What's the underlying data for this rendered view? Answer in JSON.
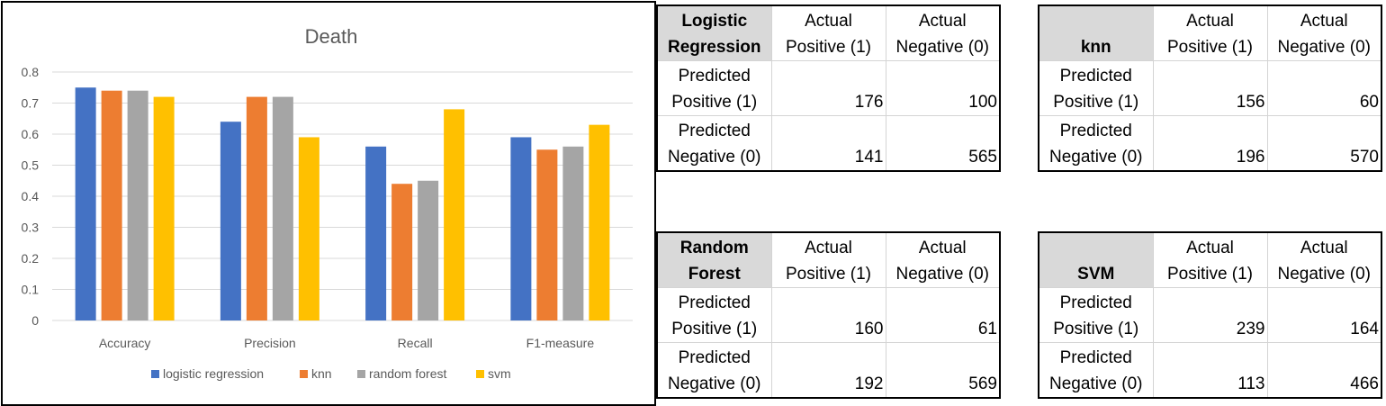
{
  "chart_data": {
    "type": "bar",
    "title": "Death",
    "categories": [
      "Accuracy",
      "Precision",
      "Recall",
      "F1-measure"
    ],
    "series": [
      {
        "name": "logistic regression",
        "color": "#4472c4",
        "values": [
          0.75,
          0.64,
          0.56,
          0.59
        ]
      },
      {
        "name": "knn",
        "color": "#ed7d31",
        "values": [
          0.74,
          0.72,
          0.44,
          0.55
        ]
      },
      {
        "name": "random forest",
        "color": "#a5a5a5",
        "values": [
          0.74,
          0.72,
          0.45,
          0.56
        ]
      },
      {
        "name": "svm",
        "color": "#ffc000",
        "values": [
          0.72,
          0.59,
          0.68,
          0.63
        ]
      }
    ],
    "ylim": [
      0,
      0.8
    ],
    "yticks": [
      "0",
      "0.1",
      "0.2",
      "0.3",
      "0.4",
      "0.5",
      "0.6",
      "0.7",
      "0.8"
    ],
    "grid": true,
    "legend": "bottom"
  },
  "matrices": [
    {
      "model": [
        "Logistic",
        "Regression"
      ],
      "col_headers": [
        [
          "Actual",
          "Positive (1)"
        ],
        [
          "Actual",
          "Negative (0)"
        ]
      ],
      "row_headers": [
        [
          "Predicted",
          "Positive (1)"
        ],
        [
          "Predicted",
          "Negative (0)"
        ]
      ],
      "values": [
        [
          "176",
          "100"
        ],
        [
          "141",
          "565"
        ]
      ]
    },
    {
      "model": [
        "knn"
      ],
      "col_headers": [
        [
          "Actual",
          "Positive (1)"
        ],
        [
          "Actual",
          "Negative (0)"
        ]
      ],
      "row_headers": [
        [
          "Predicted",
          "Positive (1)"
        ],
        [
          "Predicted",
          "Negative (0)"
        ]
      ],
      "values": [
        [
          "156",
          "60"
        ],
        [
          "196",
          "570"
        ]
      ]
    },
    {
      "model": [
        "Random",
        "Forest"
      ],
      "col_headers": [
        [
          "Actual",
          "Positive (1)"
        ],
        [
          "Actual",
          "Negative (0)"
        ]
      ],
      "row_headers": [
        [
          "Predicted",
          "Positive (1)"
        ],
        [
          "Predicted",
          "Negative (0)"
        ]
      ],
      "values": [
        [
          "160",
          "61"
        ],
        [
          "192",
          "569"
        ]
      ]
    },
    {
      "model": [
        "SVM"
      ],
      "col_headers": [
        [
          "Actual",
          "Positive (1)"
        ],
        [
          "Actual",
          "Negative (0)"
        ]
      ],
      "row_headers": [
        [
          "Predicted",
          "Positive (1)"
        ],
        [
          "Predicted",
          "Negative (0)"
        ]
      ],
      "values": [
        [
          "239",
          "164"
        ],
        [
          "113",
          "466"
        ]
      ]
    }
  ]
}
